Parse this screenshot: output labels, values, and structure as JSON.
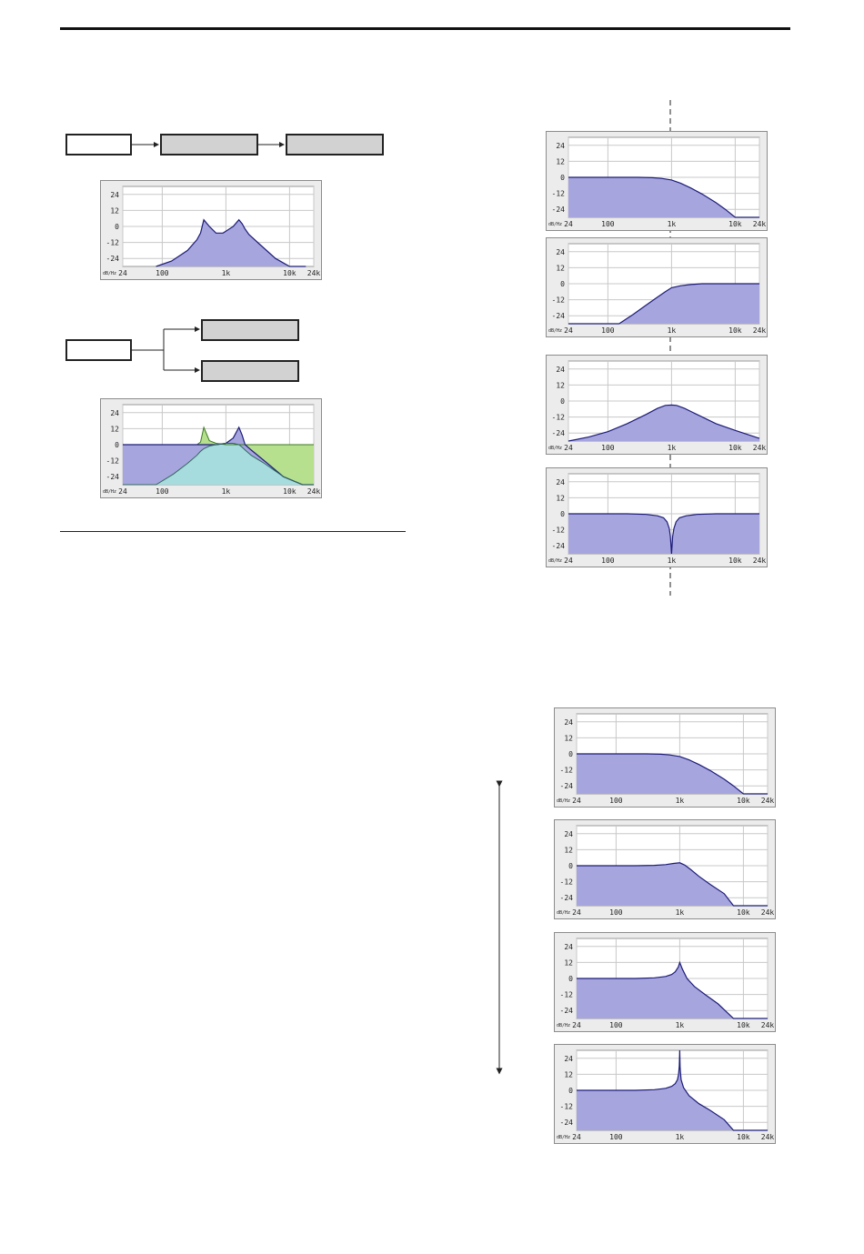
{
  "axis": {
    "y_ticks": [
      "24",
      "12",
      "0",
      "-12",
      "-24"
    ],
    "x_ticks": [
      "24",
      "100",
      "1k",
      "10k",
      "24k"
    ],
    "unit_label": "dB/Hz"
  },
  "colors": {
    "fill": "#a7a5de",
    "stroke": "#1c1c78",
    "fill_green": "#b6df8e",
    "fill_cyan": "#a6dede",
    "stroke_green": "#3c7a22",
    "grid": "#c8c8c8",
    "frame": "#8c8c8c"
  },
  "diagrams": {
    "series": {
      "blocks": [
        "",
        "",
        ""
      ]
    },
    "parallel": {
      "blocks": [
        "",
        "",
        ""
      ]
    }
  },
  "chart_data": [
    {
      "type": "area",
      "id": "series-result",
      "ylim": [
        -30,
        30
      ],
      "xlim": [
        24,
        24000
      ],
      "x": [
        80,
        140,
        250,
        350,
        400,
        450,
        550,
        700,
        900,
        1300,
        1600,
        1800,
        2000,
        2300,
        3500,
        6000,
        10000,
        18000
      ],
      "series": [
        {
          "values": [
            -30,
            -26,
            -18,
            -10,
            -5,
            5,
            0,
            -5,
            -5,
            0,
            5,
            2,
            -2,
            -6,
            -14,
            -24,
            -30,
            -30
          ]
        }
      ]
    },
    {
      "type": "area",
      "id": "parallel-result",
      "ylim": [
        -30,
        30
      ],
      "xlim": [
        24,
        24000
      ],
      "x": [
        24,
        80,
        150,
        250,
        350,
        400,
        450,
        550,
        700,
        1000,
        1300,
        1600,
        1800,
        2000,
        2500,
        4000,
        8000,
        16000,
        24000
      ],
      "series": [
        {
          "values": [
            0,
            0,
            0,
            0,
            0,
            2,
            13,
            3,
            1,
            0,
            0,
            0,
            0,
            0,
            0,
            0,
            0,
            0,
            0
          ]
        },
        {
          "values": [
            0,
            0,
            0,
            0,
            0,
            0,
            0,
            0,
            0,
            1,
            5,
            13,
            7,
            0,
            -4,
            -12,
            -24,
            -30,
            -30
          ]
        },
        {
          "values": [
            -30,
            -30,
            -22,
            -14,
            -8,
            -5,
            -3,
            -1,
            0,
            1,
            1,
            0,
            -2,
            -4,
            -8,
            -14,
            -24,
            -30,
            -30
          ]
        }
      ]
    },
    {
      "type": "area",
      "id": "lpf",
      "ylim": [
        -30,
        30
      ],
      "xlim": [
        24,
        24000
      ],
      "x": [
        24,
        100,
        300,
        500,
        700,
        1000,
        1400,
        2000,
        3000,
        5000,
        7000,
        10000,
        24000
      ],
      "series": [
        {
          "values": [
            0,
            0,
            0,
            -0.3,
            -0.8,
            -2,
            -4.5,
            -8,
            -12.5,
            -19,
            -24,
            -30,
            -30
          ]
        }
      ]
    },
    {
      "type": "area",
      "id": "hpf",
      "ylim": [
        -30,
        30
      ],
      "xlim": [
        24,
        24000
      ],
      "x": [
        24,
        100,
        150,
        250,
        400,
        600,
        800,
        1000,
        1400,
        2000,
        3000,
        10000,
        24000
      ],
      "series": [
        {
          "values": [
            -30,
            -30,
            -30,
            -23,
            -16,
            -10,
            -6,
            -3,
            -1.5,
            -0.6,
            0,
            0,
            0
          ]
        }
      ]
    },
    {
      "type": "area",
      "id": "bpf",
      "ylim": [
        -30,
        30
      ],
      "xlim": [
        24,
        24000
      ],
      "x": [
        24,
        50,
        100,
        200,
        400,
        600,
        800,
        1000,
        1200,
        1600,
        2500,
        5000,
        10000,
        24000
      ],
      "series": [
        {
          "values": [
            -30,
            -27,
            -23,
            -17,
            -10,
            -5.5,
            -3.3,
            -3,
            -3.3,
            -5.5,
            -10,
            -17,
            -22,
            -28
          ]
        }
      ]
    },
    {
      "type": "area",
      "id": "brf",
      "ylim": [
        -30,
        30
      ],
      "xlim": [
        24,
        24000
      ],
      "x": [
        24,
        200,
        400,
        600,
        750,
        850,
        920,
        960,
        1000,
        1040,
        1090,
        1180,
        1330,
        1700,
        2500,
        5000,
        24000
      ],
      "series": [
        {
          "values": [
            0,
            0,
            -0.5,
            -1.5,
            -3,
            -6,
            -11,
            -17,
            -30,
            -17,
            -11,
            -6,
            -3,
            -1.5,
            -0.5,
            0,
            0
          ]
        }
      ]
    },
    {
      "type": "area",
      "id": "res-0",
      "ylim": [
        -30,
        30
      ],
      "xlim": [
        24,
        24000
      ],
      "x": [
        24,
        100,
        300,
        500,
        700,
        1000,
        1400,
        2000,
        3000,
        5000,
        7000,
        10000,
        24000
      ],
      "series": [
        {
          "values": [
            0,
            0,
            0,
            -0.3,
            -0.8,
            -2,
            -4.5,
            -8,
            -12.5,
            -19,
            -24,
            -30,
            -30
          ]
        }
      ]
    },
    {
      "type": "area",
      "id": "res-1",
      "ylim": [
        -30,
        30
      ],
      "xlim": [
        24,
        24000
      ],
      "x": [
        24,
        200,
        400,
        600,
        800,
        1000,
        1200,
        1500,
        2000,
        3000,
        5000,
        7000,
        24000
      ],
      "series": [
        {
          "values": [
            0,
            0,
            0.3,
            0.8,
            1.7,
            2.2,
            0.5,
            -3,
            -8,
            -14,
            -21,
            -30,
            -30
          ]
        }
      ]
    },
    {
      "type": "area",
      "id": "res-2",
      "ylim": [
        -30,
        30
      ],
      "xlim": [
        24,
        24000
      ],
      "x": [
        24,
        200,
        400,
        600,
        750,
        850,
        950,
        1000,
        1100,
        1300,
        1700,
        2500,
        4000,
        7000,
        24000
      ],
      "series": [
        {
          "values": [
            0,
            0,
            0.5,
            1.5,
            3,
            5,
            8.5,
            12,
            7,
            0,
            -6,
            -12,
            -19,
            -30,
            -30
          ]
        }
      ]
    },
    {
      "type": "area",
      "id": "res-3",
      "ylim": [
        -30,
        30
      ],
      "xlim": [
        24,
        24000
      ],
      "x": [
        24,
        200,
        400,
        600,
        750,
        850,
        920,
        960,
        985,
        1000,
        1015,
        1050,
        1150,
        1400,
        2000,
        3000,
        5000,
        7000,
        24000
      ],
      "series": [
        {
          "values": [
            0,
            0,
            0.5,
            1.5,
            3,
            5,
            8,
            12,
            18,
            30,
            17,
            8,
            2,
            -4,
            -10,
            -15,
            -22,
            -30,
            -30
          ]
        }
      ]
    }
  ]
}
